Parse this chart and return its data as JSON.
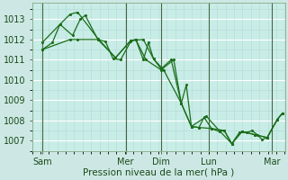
{
  "xlabel": "Pression niveau de la mer( hPa )",
  "bg_color": "#cde8e4",
  "plot_bg_color": "#c8ece6",
  "line_color": "#1a6e1a",
  "grid_major_color": "#ffffff",
  "grid_minor_color": "#b8ddd8",
  "ylim": [
    1006.5,
    1013.8
  ],
  "yticks": [
    1007,
    1008,
    1009,
    1010,
    1011,
    1012,
    1013
  ],
  "xlim": [
    0,
    100
  ],
  "day_ticks": [
    4,
    37,
    51,
    70,
    95
  ],
  "day_labels": [
    "Sam",
    "Mer",
    "Dim",
    "Lun",
    "Mar"
  ],
  "vlines": [
    4,
    37,
    51,
    70,
    95
  ],
  "series1": [
    [
      4,
      1011.5
    ],
    [
      8,
      1011.85
    ],
    [
      11,
      1012.75
    ],
    [
      16,
      1012.2
    ],
    [
      19,
      1013.0
    ],
    [
      21,
      1013.2
    ],
    [
      26,
      1012.0
    ],
    [
      29,
      1011.9
    ],
    [
      32,
      1011.05
    ],
    [
      35,
      1011.0
    ],
    [
      39,
      1011.9
    ],
    [
      41,
      1012.0
    ],
    [
      44,
      1011.0
    ],
    [
      46,
      1011.85
    ],
    [
      48,
      1011.05
    ],
    [
      51,
      1010.55
    ],
    [
      55,
      1011.0
    ],
    [
      59,
      1008.85
    ],
    [
      61,
      1009.75
    ],
    [
      63,
      1007.7
    ],
    [
      66,
      1007.65
    ],
    [
      68,
      1008.15
    ],
    [
      71,
      1007.6
    ],
    [
      74,
      1007.45
    ],
    [
      76,
      1007.5
    ],
    [
      79,
      1006.85
    ],
    [
      82,
      1007.4
    ],
    [
      85,
      1007.4
    ],
    [
      87,
      1007.5
    ],
    [
      89,
      1007.3
    ],
    [
      91,
      1007.05
    ],
    [
      93,
      1007.15
    ],
    [
      97,
      1008.05
    ],
    [
      99,
      1008.35
    ]
  ],
  "series2": [
    [
      4,
      1011.85
    ],
    [
      11,
      1012.75
    ],
    [
      15,
      1013.25
    ],
    [
      18,
      1013.35
    ],
    [
      26,
      1012.05
    ],
    [
      33,
      1011.1
    ],
    [
      39,
      1011.95
    ],
    [
      44,
      1012.0
    ],
    [
      48,
      1011.05
    ],
    [
      52,
      1010.5
    ],
    [
      59,
      1008.85
    ],
    [
      63,
      1007.7
    ],
    [
      69,
      1008.2
    ],
    [
      74,
      1007.5
    ],
    [
      79,
      1006.85
    ],
    [
      83,
      1007.45
    ],
    [
      88,
      1007.3
    ],
    [
      93,
      1007.15
    ],
    [
      97,
      1008.05
    ],
    [
      99,
      1008.35
    ]
  ],
  "series3": [
    [
      4,
      1011.5
    ],
    [
      15,
      1012.0
    ],
    [
      18,
      1012.0
    ],
    [
      26,
      1012.0
    ],
    [
      33,
      1011.1
    ],
    [
      39,
      1011.95
    ],
    [
      41,
      1012.0
    ],
    [
      45,
      1011.0
    ],
    [
      51,
      1010.5
    ],
    [
      56,
      1011.0
    ],
    [
      59,
      1008.85
    ],
    [
      63,
      1007.7
    ],
    [
      66,
      1007.65
    ],
    [
      71,
      1007.6
    ],
    [
      76,
      1007.5
    ],
    [
      79,
      1006.85
    ],
    [
      83,
      1007.45
    ],
    [
      88,
      1007.3
    ],
    [
      93,
      1007.15
    ],
    [
      97,
      1008.05
    ],
    [
      99,
      1008.35
    ]
  ]
}
